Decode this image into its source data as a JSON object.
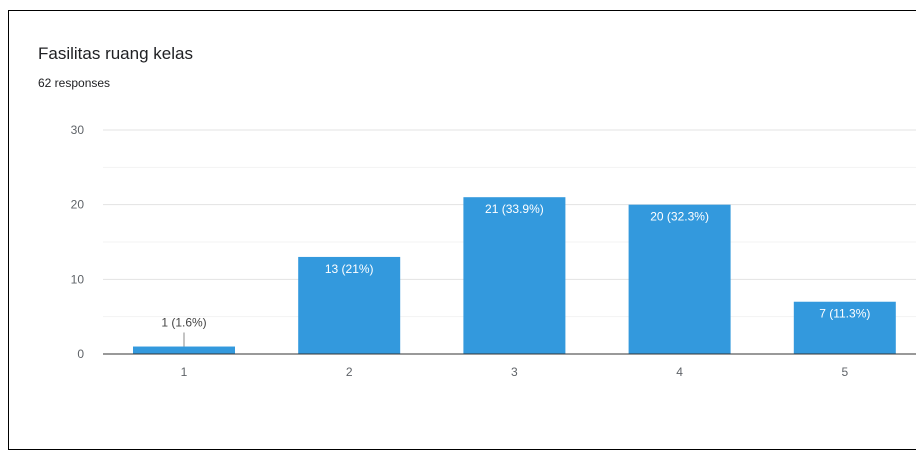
{
  "header": {
    "title": "Fasilitas ruang kelas",
    "subtitle": "62 responses"
  },
  "colors": {
    "bar": "#3399dd",
    "gridline": "#e8e8e8",
    "axis": "#333333",
    "label_inside": "#ffffff",
    "label_outside": "#444444"
  },
  "chart_data": {
    "type": "bar",
    "title": "Fasilitas ruang kelas",
    "subtitle": "62 responses",
    "categories": [
      "1",
      "2",
      "3",
      "4",
      "5"
    ],
    "values": [
      1,
      13,
      21,
      20,
      7
    ],
    "data_labels": [
      "1 (1.6%)",
      "13 (21%)",
      "21 (33.9%)",
      "20 (32.3%)",
      "7 (11.3%)"
    ],
    "ylim": [
      0,
      30
    ],
    "yticks": [
      "0",
      "10",
      "20",
      "30"
    ],
    "xlabel": "",
    "ylabel": "",
    "grid": true,
    "legend": "none"
  }
}
